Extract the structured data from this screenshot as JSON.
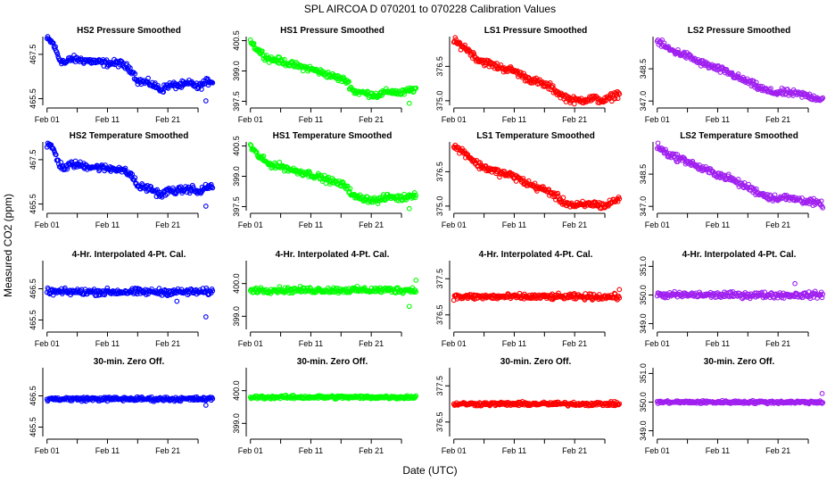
{
  "figure": {
    "title": "SPL   AIRCOA D   070201 to 070228   Calibration Values",
    "xlabel": "Date (UTC)",
    "ylabel": "Measured CO2 (ppm)"
  },
  "chart_data": [
    {
      "type": "scatter",
      "title": "HS2 Pressure Smoothed",
      "color": "#0000ff",
      "x_ticks": [
        "Feb 01",
        "Feb 11",
        "Feb 21"
      ],
      "y_ticks": [
        "465.5",
        "467.5"
      ],
      "ylim": [
        465.2,
        468.3
      ],
      "profile": [
        [
          1,
          468.2
        ],
        [
          2,
          468.0
        ],
        [
          3,
          467.3
        ],
        [
          4,
          467.1
        ],
        [
          5,
          467.3
        ],
        [
          8,
          467.2
        ],
        [
          11,
          467.1
        ],
        [
          13,
          467.1
        ],
        [
          15,
          466.8
        ],
        [
          16,
          466.3
        ],
        [
          18,
          466.2
        ],
        [
          20,
          465.9
        ],
        [
          21,
          466.1
        ],
        [
          23,
          466.1
        ],
        [
          25,
          466.2
        ],
        [
          26,
          466.0
        ],
        [
          27,
          466.2
        ],
        [
          28,
          466.3
        ]
      ],
      "noise": 0.12,
      "outliers": [
        [
          27.3,
          465.4
        ]
      ]
    },
    {
      "type": "scatter",
      "title": "HS1 Pressure Smoothed",
      "color": "#00ff00",
      "x_ticks": [
        "Feb 01",
        "Feb 11",
        "Feb 21"
      ],
      "y_ticks": [
        "397.5",
        "399.0",
        "400.5"
      ],
      "ylim": [
        397.3,
        400.7
      ],
      "profile": [
        [
          1,
          400.5
        ],
        [
          2,
          400.1
        ],
        [
          4,
          399.6
        ],
        [
          6,
          399.5
        ],
        [
          8,
          399.3
        ],
        [
          11,
          399.1
        ],
        [
          13,
          398.9
        ],
        [
          15,
          398.7
        ],
        [
          17,
          398.5
        ],
        [
          18,
          398.0
        ],
        [
          20,
          397.9
        ],
        [
          22,
          397.8
        ],
        [
          24,
          398.0
        ],
        [
          26,
          397.9
        ],
        [
          28,
          398.1
        ]
      ],
      "noise": 0.12,
      "outliers": [
        [
          27.3,
          397.4
        ]
      ]
    },
    {
      "type": "scatter",
      "title": "LS1 Pressure Smoothed",
      "color": "#ff0000",
      "x_ticks": [
        "Feb 01",
        "Feb 11",
        "Feb 21"
      ],
      "y_ticks": [
        "375.0",
        "376.5"
      ],
      "ylim": [
        374.8,
        377.8
      ],
      "profile": [
        [
          1,
          377.6
        ],
        [
          3,
          377.3
        ],
        [
          5,
          376.8
        ],
        [
          8,
          376.5
        ],
        [
          11,
          376.3
        ],
        [
          13,
          376.0
        ],
        [
          15,
          375.8
        ],
        [
          16,
          375.7
        ],
        [
          17,
          375.6
        ],
        [
          18,
          375.4
        ],
        [
          19,
          375.2
        ],
        [
          21,
          375.0
        ],
        [
          24,
          375.1
        ],
        [
          26,
          375.0
        ],
        [
          28,
          375.3
        ]
      ],
      "noise": 0.12,
      "outliers": []
    },
    {
      "type": "scatter",
      "title": "LS2 Pressure Smoothed",
      "color": "#a020f0",
      "x_ticks": [
        "Feb 01",
        "Feb 11",
        "Feb 21"
      ],
      "y_ticks": [
        "347.0",
        "348.5"
      ],
      "ylim": [
        346.8,
        350.0
      ],
      "profile": [
        [
          1,
          349.8
        ],
        [
          3,
          349.4
        ],
        [
          6,
          349.1
        ],
        [
          8,
          348.8
        ],
        [
          11,
          348.5
        ],
        [
          13,
          348.3
        ],
        [
          15,
          348.0
        ],
        [
          16,
          347.9
        ],
        [
          18,
          347.6
        ],
        [
          20,
          347.4
        ],
        [
          22,
          347.4
        ],
        [
          25,
          347.3
        ],
        [
          28,
          347.1
        ]
      ],
      "noise": 0.12,
      "outliers": []
    },
    {
      "type": "scatter",
      "title": "HS2 Temperature Smoothed",
      "color": "#0000ff",
      "x_ticks": [
        "Feb 01",
        "Feb 11",
        "Feb 21"
      ],
      "y_ticks": [
        "465.5",
        "467.5"
      ],
      "ylim": [
        465.2,
        468.3
      ],
      "profile": [
        [
          1,
          468.2
        ],
        [
          2,
          468.0
        ],
        [
          3,
          467.3
        ],
        [
          4,
          467.1
        ],
        [
          5,
          467.3
        ],
        [
          8,
          467.2
        ],
        [
          11,
          467.1
        ],
        [
          13,
          467.1
        ],
        [
          15,
          466.8
        ],
        [
          16,
          466.3
        ],
        [
          18,
          466.2
        ],
        [
          20,
          465.9
        ],
        [
          21,
          466.1
        ],
        [
          23,
          466.1
        ],
        [
          25,
          466.2
        ],
        [
          26,
          466.0
        ],
        [
          27,
          466.2
        ],
        [
          28,
          466.3
        ]
      ],
      "noise": 0.12,
      "outliers": [
        [
          27.3,
          465.4
        ]
      ]
    },
    {
      "type": "scatter",
      "title": "HS1 Temperature Smoothed",
      "color": "#00ff00",
      "x_ticks": [
        "Feb 01",
        "Feb 11",
        "Feb 21"
      ],
      "y_ticks": [
        "397.5",
        "399.0",
        "400.5"
      ],
      "ylim": [
        397.3,
        400.7
      ],
      "profile": [
        [
          1,
          400.5
        ],
        [
          2,
          400.1
        ],
        [
          4,
          399.6
        ],
        [
          6,
          399.5
        ],
        [
          8,
          399.3
        ],
        [
          11,
          399.1
        ],
        [
          13,
          398.9
        ],
        [
          15,
          398.7
        ],
        [
          17,
          398.5
        ],
        [
          18,
          398.0
        ],
        [
          20,
          397.9
        ],
        [
          22,
          397.8
        ],
        [
          24,
          398.0
        ],
        [
          26,
          397.9
        ],
        [
          28,
          398.1
        ]
      ],
      "noise": 0.12,
      "outliers": [
        [
          27.3,
          397.4
        ]
      ]
    },
    {
      "type": "scatter",
      "title": "LS1 Temperature Smoothed",
      "color": "#ff0000",
      "x_ticks": [
        "Feb 01",
        "Feb 11",
        "Feb 21"
      ],
      "y_ticks": [
        "375.0",
        "376.5"
      ],
      "ylim": [
        374.8,
        377.8
      ],
      "profile": [
        [
          1,
          377.6
        ],
        [
          3,
          377.3
        ],
        [
          5,
          376.8
        ],
        [
          8,
          376.5
        ],
        [
          11,
          376.3
        ],
        [
          13,
          376.0
        ],
        [
          15,
          375.8
        ],
        [
          16,
          375.7
        ],
        [
          17,
          375.6
        ],
        [
          18,
          375.4
        ],
        [
          19,
          375.2
        ],
        [
          21,
          375.0
        ],
        [
          24,
          375.1
        ],
        [
          26,
          375.0
        ],
        [
          28,
          375.3
        ]
      ],
      "noise": 0.12,
      "outliers": []
    },
    {
      "type": "scatter",
      "title": "LS2 Temperature Smoothed",
      "color": "#a020f0",
      "x_ticks": [
        "Feb 01",
        "Feb 11",
        "Feb 21"
      ],
      "y_ticks": [
        "347.0",
        "348.5"
      ],
      "ylim": [
        346.8,
        350.0
      ],
      "profile": [
        [
          1,
          349.8
        ],
        [
          3,
          349.4
        ],
        [
          6,
          349.1
        ],
        [
          8,
          348.8
        ],
        [
          11,
          348.5
        ],
        [
          13,
          348.3
        ],
        [
          15,
          348.0
        ],
        [
          16,
          347.9
        ],
        [
          18,
          347.6
        ],
        [
          20,
          347.4
        ],
        [
          22,
          347.4
        ],
        [
          25,
          347.3
        ],
        [
          28,
          347.1
        ]
      ],
      "noise": 0.12,
      "outliers": []
    },
    {
      "type": "scatter",
      "title": "4-Hr. Interpolated 4-Pt. Cal.",
      "color": "#0000ff",
      "x_ticks": [
        "Feb 01",
        "Feb 11",
        "Feb 21"
      ],
      "y_ticks": [
        "465.5",
        "466.5"
      ],
      "ylim": [
        465.2,
        467.4
      ],
      "profile": [
        [
          1,
          466.4
        ],
        [
          28,
          466.4
        ]
      ],
      "noise": 0.08,
      "outliers": [
        [
          27.3,
          465.6
        ],
        [
          22.5,
          466.1
        ]
      ]
    },
    {
      "type": "scatter",
      "title": "4-Hr. Interpolated 4-Pt. Cal.",
      "color": "#00ff00",
      "x_ticks": [
        "Feb 01",
        "Feb 11",
        "Feb 21"
      ],
      "y_ticks": [
        "399.0",
        "400.0"
      ],
      "ylim": [
        398.6,
        400.7
      ],
      "profile": [
        [
          1,
          399.8
        ],
        [
          28,
          399.8
        ]
      ],
      "noise": 0.07,
      "outliers": [
        [
          27.3,
          399.3
        ],
        [
          28.4,
          400.1
        ]
      ]
    },
    {
      "type": "scatter",
      "title": "4-Hr. Interpolated 4-Pt. Cal.",
      "color": "#ff0000",
      "x_ticks": [
        "Feb 01",
        "Feb 11",
        "Feb 21"
      ],
      "y_ticks": [
        "376.5",
        "377.5"
      ],
      "ylim": [
        376.1,
        378.0
      ],
      "profile": [
        [
          1,
          377.0
        ],
        [
          28,
          377.0
        ]
      ],
      "noise": 0.06,
      "outliers": [
        [
          28.4,
          377.2
        ]
      ]
    },
    {
      "type": "scatter",
      "title": "4-Hr. Interpolated 4-Pt. Cal.",
      "color": "#a020f0",
      "x_ticks": [
        "Feb 01",
        "Feb 11",
        "Feb 21"
      ],
      "y_ticks": [
        "349.0",
        "350.0",
        "351.0"
      ],
      "ylim": [
        348.8,
        351.2
      ],
      "profile": [
        [
          1,
          350.0
        ],
        [
          28,
          350.0
        ]
      ],
      "noise": 0.08,
      "outliers": [
        [
          23.8,
          350.4
        ]
      ]
    },
    {
      "type": "scatter",
      "title": "30-min. Zero Off.",
      "color": "#0000ff",
      "x_ticks": [
        "Feb 01",
        "Feb 11",
        "Feb 21"
      ],
      "y_ticks": [
        "465.5",
        "466.5"
      ],
      "ylim": [
        465.2,
        467.4
      ],
      "profile": [
        [
          1,
          466.4
        ],
        [
          28,
          466.4
        ]
      ],
      "noise": 0.05,
      "outliers": [
        [
          27.3,
          466.2
        ]
      ]
    },
    {
      "type": "scatter",
      "title": "30-min. Zero Off.",
      "color": "#00ff00",
      "x_ticks": [
        "Feb 01",
        "Feb 11",
        "Feb 21"
      ],
      "y_ticks": [
        "399.0",
        "400.0"
      ],
      "ylim": [
        398.6,
        400.7
      ],
      "profile": [
        [
          1,
          399.8
        ],
        [
          28,
          399.8
        ]
      ],
      "noise": 0.04,
      "outliers": []
    },
    {
      "type": "scatter",
      "title": "30-min. Zero Off.",
      "color": "#ff0000",
      "x_ticks": [
        "Feb 01",
        "Feb 11",
        "Feb 21"
      ],
      "y_ticks": [
        "376.5",
        "377.5"
      ],
      "ylim": [
        376.1,
        378.0
      ],
      "profile": [
        [
          1,
          377.0
        ],
        [
          28,
          377.0
        ]
      ],
      "noise": 0.04,
      "outliers": []
    },
    {
      "type": "scatter",
      "title": "30-min. Zero Off.",
      "color": "#a020f0",
      "x_ticks": [
        "Feb 01",
        "Feb 11",
        "Feb 21"
      ],
      "y_ticks": [
        "349.0",
        "350.0",
        "351.0"
      ],
      "ylim": [
        348.8,
        351.2
      ],
      "profile": [
        [
          1,
          350.0
        ],
        [
          28,
          350.0
        ]
      ],
      "noise": 0.04,
      "outliers": [
        [
          28.3,
          350.3
        ]
      ]
    }
  ]
}
